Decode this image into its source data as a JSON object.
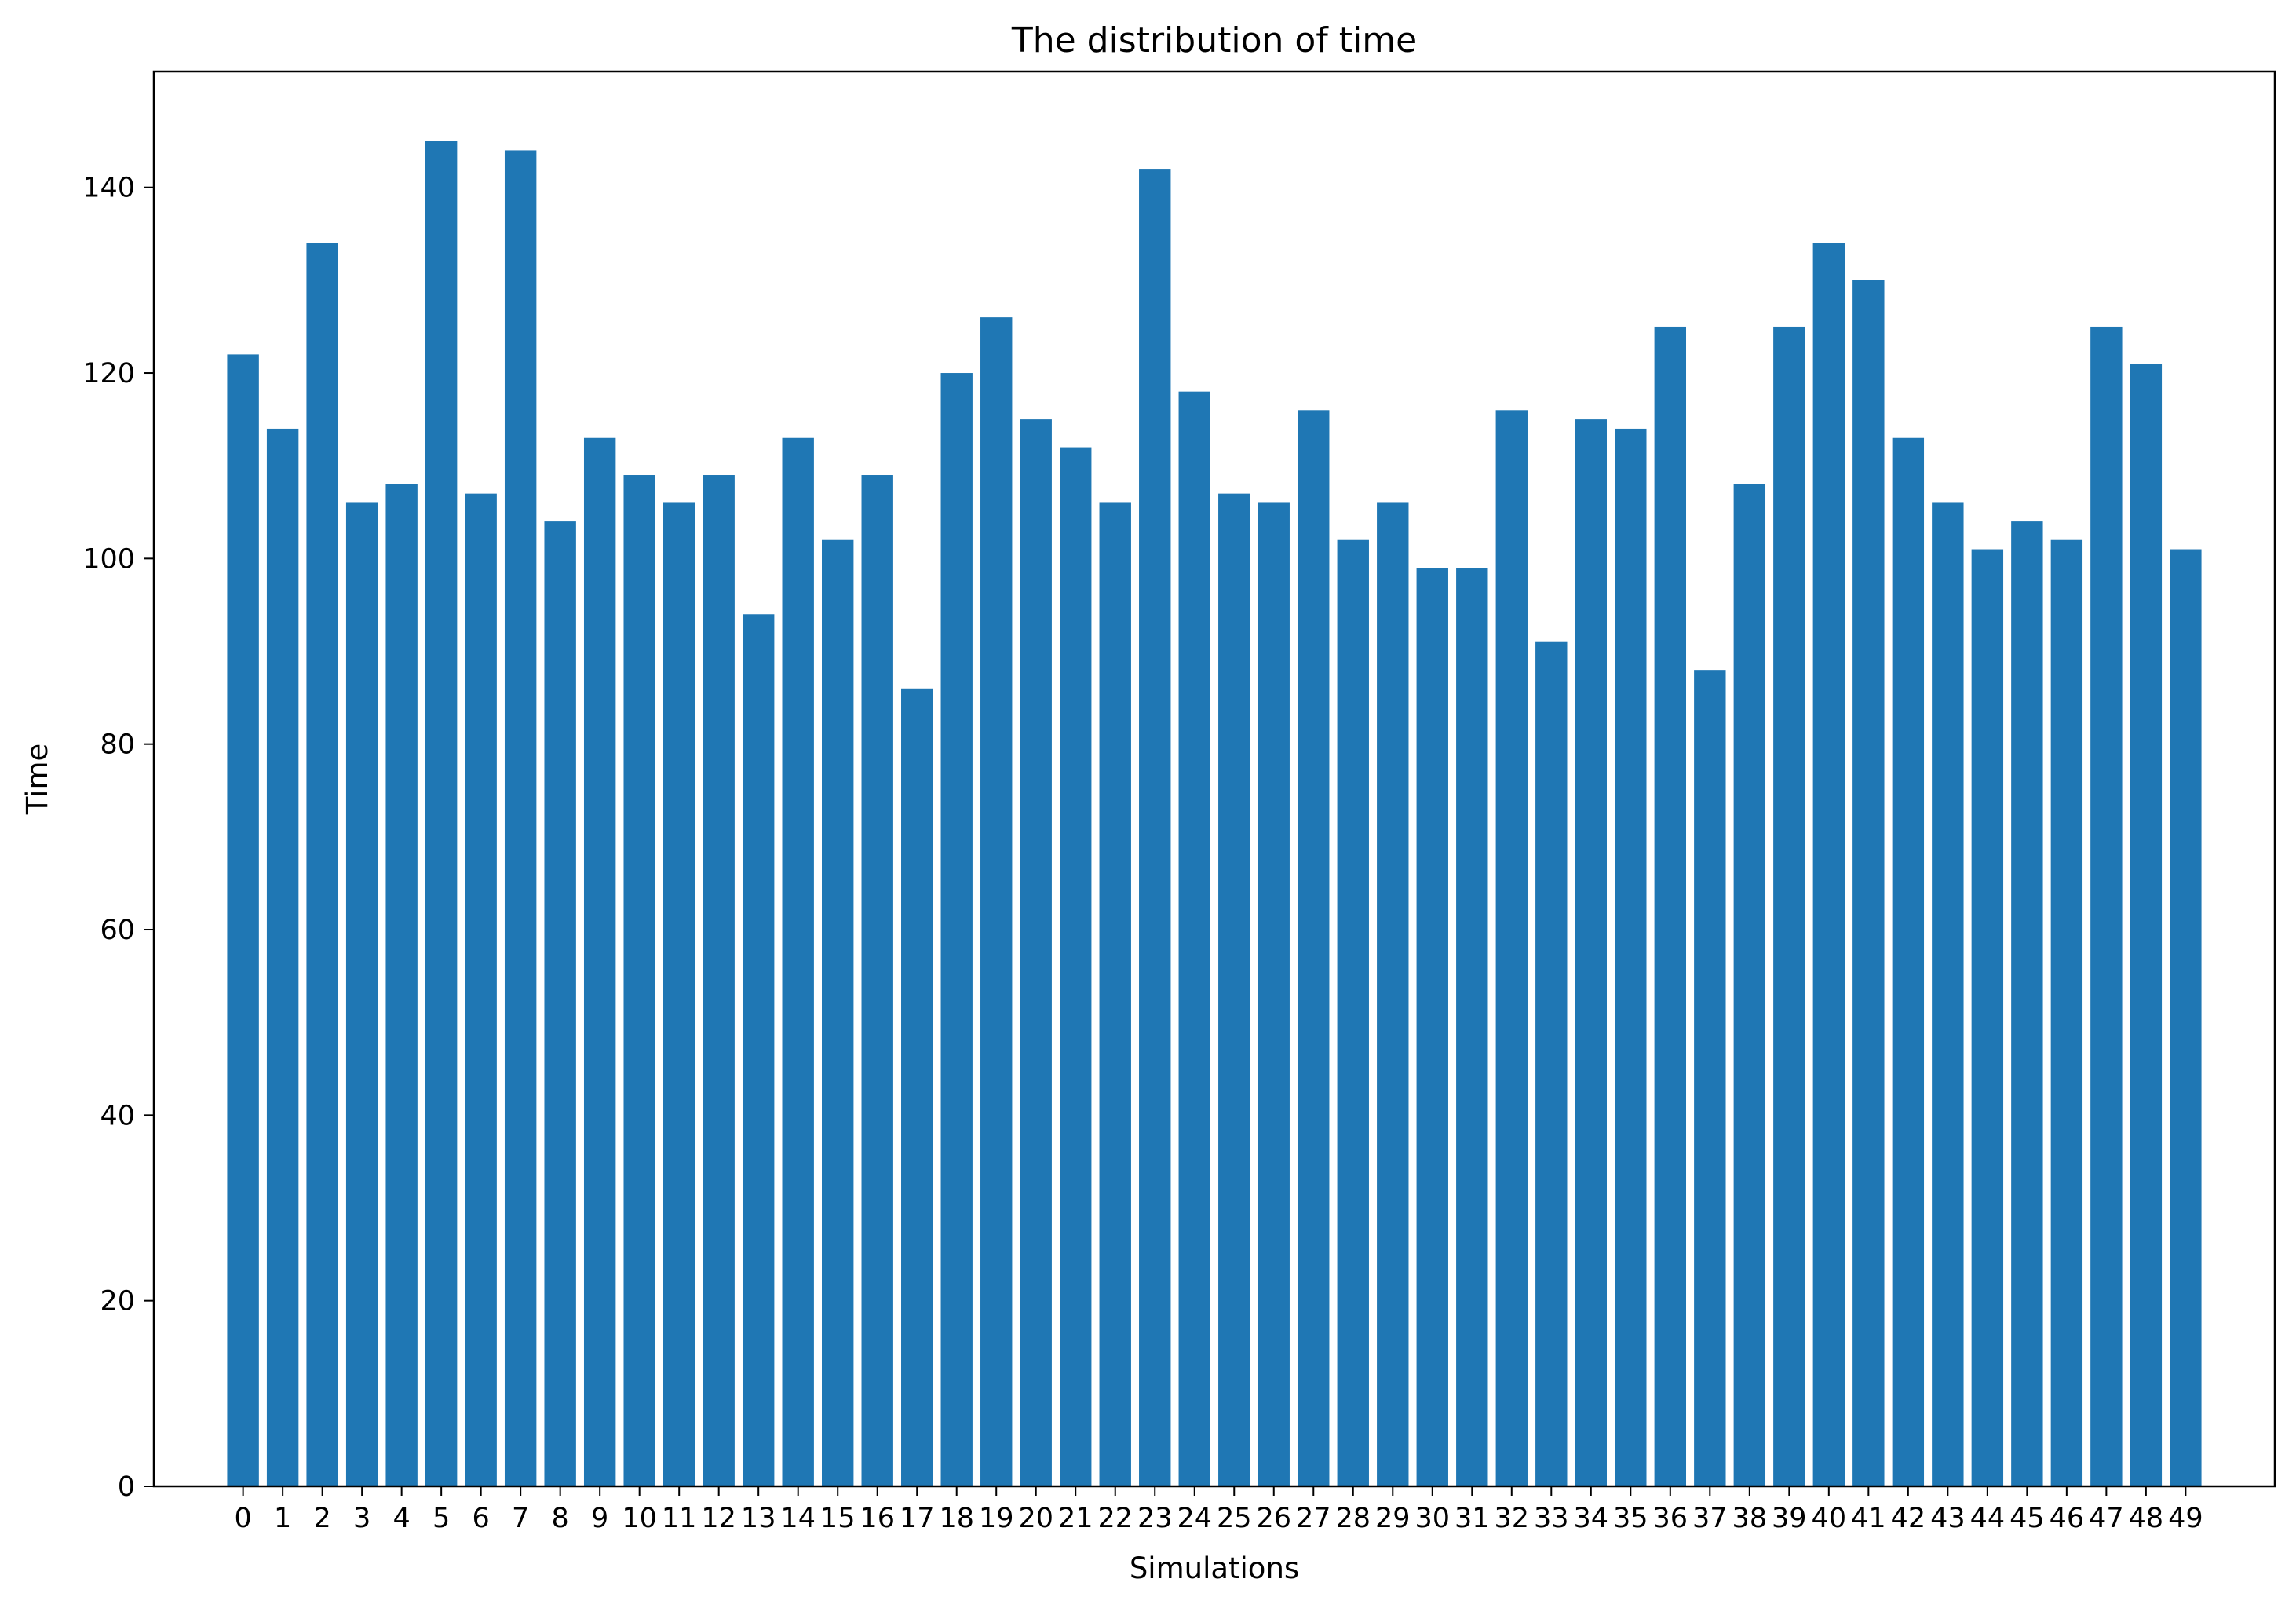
{
  "chart_data": {
    "type": "bar",
    "title": "The distribution of time",
    "xlabel": "Simulations",
    "ylabel": "Time",
    "categories": [
      "0",
      "1",
      "2",
      "3",
      "4",
      "5",
      "6",
      "7",
      "8",
      "9",
      "10",
      "11",
      "12",
      "13",
      "14",
      "15",
      "16",
      "17",
      "18",
      "19",
      "20",
      "21",
      "22",
      "23",
      "24",
      "25",
      "26",
      "27",
      "28",
      "29",
      "30",
      "31",
      "32",
      "33",
      "34",
      "35",
      "36",
      "37",
      "38",
      "39",
      "40",
      "41",
      "42",
      "43",
      "44",
      "45",
      "46",
      "47",
      "48",
      "49"
    ],
    "values": [
      122,
      114,
      134,
      106,
      108,
      145,
      107,
      144,
      104,
      113,
      109,
      106,
      109,
      94,
      113,
      102,
      109,
      86,
      120,
      126,
      115,
      112,
      106,
      142,
      118,
      107,
      106,
      116,
      102,
      106,
      99,
      99,
      116,
      91,
      115,
      114,
      125,
      88,
      108,
      125,
      134,
      130,
      113,
      106,
      101,
      104,
      102,
      125,
      121,
      101
    ],
    "ylim": [
      0,
      152.5
    ],
    "yticks": [
      0,
      20,
      40,
      60,
      80,
      100,
      120,
      140
    ],
    "grid": false,
    "bar_color": "#1f77b4"
  }
}
